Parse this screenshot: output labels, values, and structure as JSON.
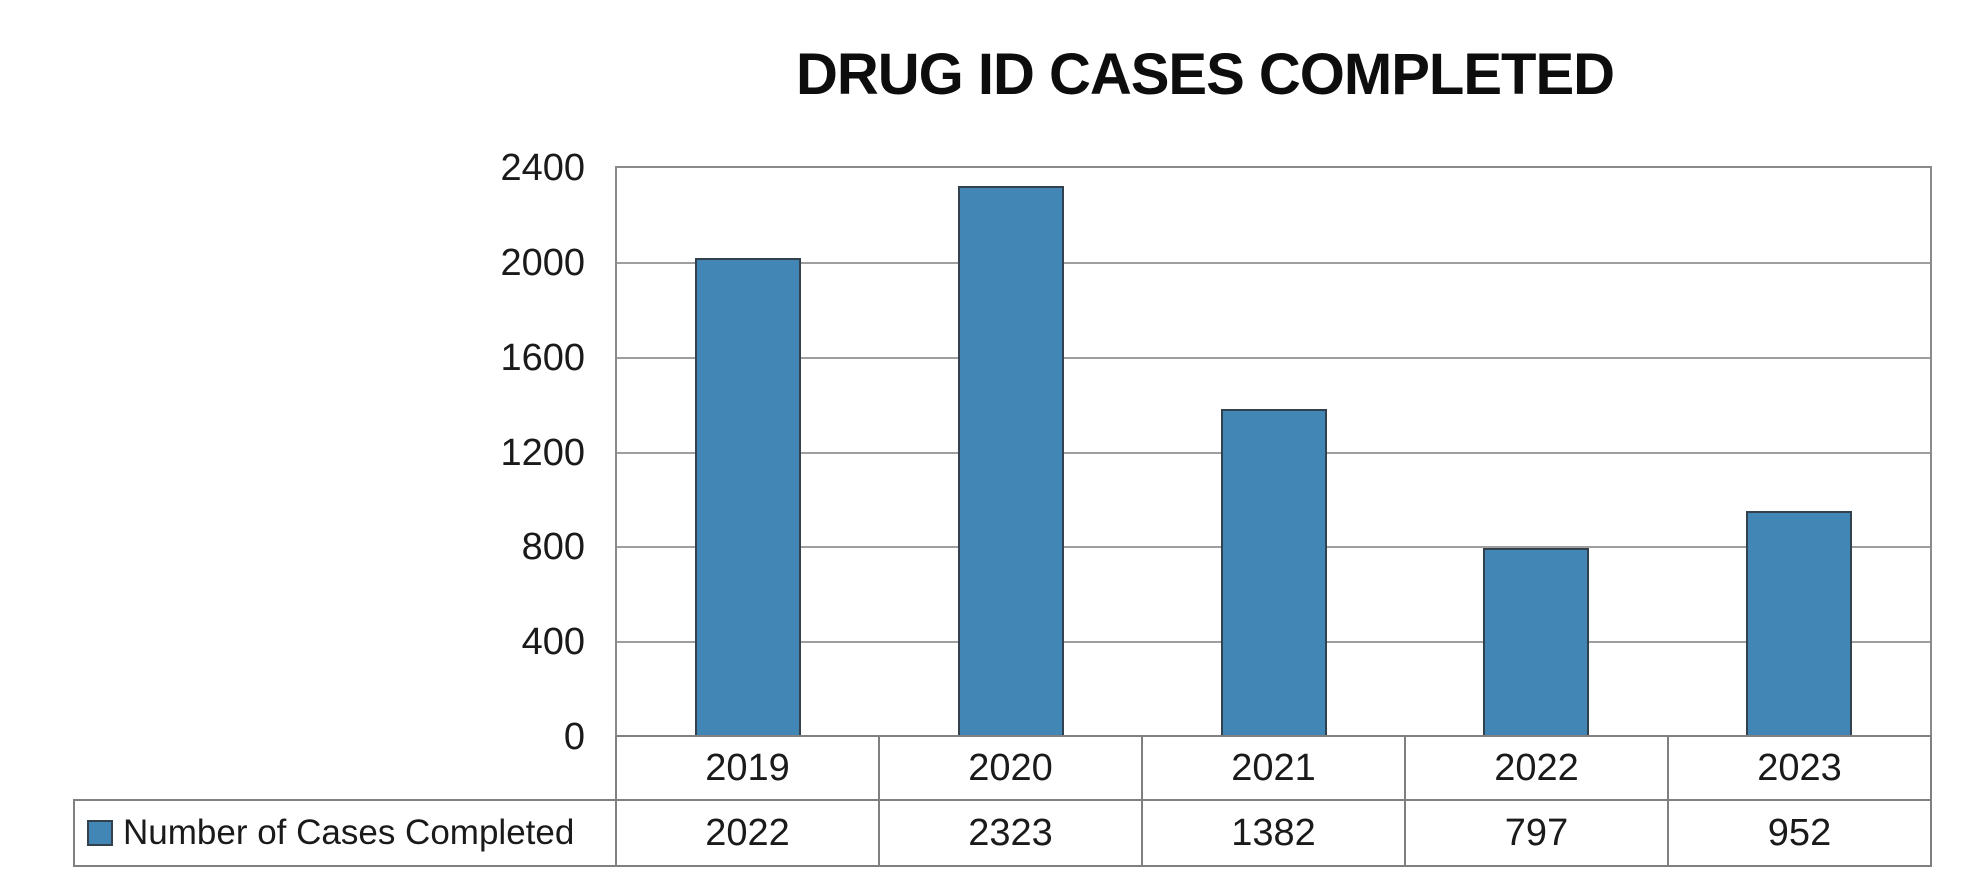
{
  "title": "DRUG ID CASES COMPLETED",
  "chart_data": {
    "type": "bar",
    "title": "DRUG ID CASES COMPLETED",
    "categories": [
      "2019",
      "2020",
      "2021",
      "2022",
      "2023"
    ],
    "series": [
      {
        "name": "Number of Cases Completed",
        "values": [
          2022,
          2323,
          1382,
          797,
          952
        ]
      }
    ],
    "xlabel": "",
    "ylabel": "",
    "ylim": [
      0,
      2400
    ],
    "yticks": [
      0,
      400,
      800,
      1200,
      1600,
      2000,
      2400
    ],
    "grid": true,
    "legend_position": "bottom-left-table",
    "colors": {
      "bar_fill": "#4186B4",
      "bar_border": "#33414F",
      "gridline": "#9E9E9E",
      "plot_border": "#8A8A8A",
      "table_border": "#808080",
      "text": "#1A1A1A",
      "title_text": "#0D0D0D"
    }
  }
}
